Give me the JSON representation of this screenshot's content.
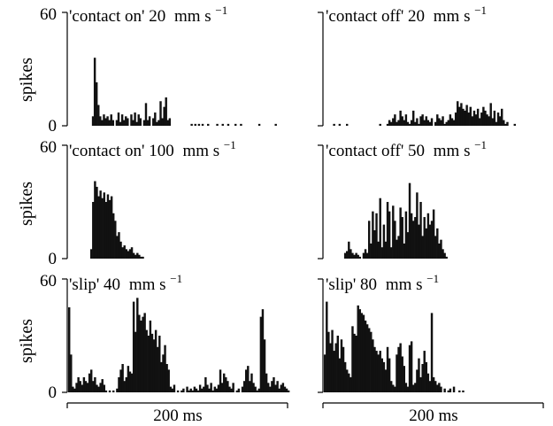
{
  "chart_data": [
    {
      "type": "bar",
      "title": "'contact on' 20",
      "unit": "mm s",
      "unit_exp": "−1",
      "ylabel": "spikes",
      "yticks": [
        "0",
        "60"
      ],
      "ylim": [
        0,
        60
      ],
      "values": [
        0,
        0,
        0,
        0,
        0,
        0,
        0,
        0,
        0,
        0,
        0,
        0,
        0,
        5,
        36,
        23,
        11,
        5,
        3,
        6,
        4,
        5,
        3,
        6,
        3,
        0,
        3,
        7,
        2,
        6,
        3,
        5,
        4,
        0,
        6,
        3,
        7,
        2,
        6,
        4,
        0,
        3,
        12,
        3,
        5,
        0,
        4,
        7,
        2,
        3,
        13,
        4,
        10,
        15,
        3,
        4,
        0,
        0,
        0,
        0,
        0,
        0,
        0,
        0,
        0,
        0,
        0,
        1,
        0,
        1,
        0,
        1,
        0,
        1,
        0,
        0,
        1,
        0,
        0,
        0,
        0,
        1,
        0,
        0,
        1,
        0,
        0,
        1,
        0,
        0,
        0,
        1,
        0,
        0,
        1,
        0,
        0,
        0,
        0,
        0,
        0,
        0,
        0,
        0,
        1,
        0,
        0,
        0,
        0,
        0,
        0,
        0,
        0,
        1,
        0,
        0,
        0,
        0,
        0,
        0,
        0
      ]
    },
    {
      "type": "bar",
      "title": "'contact off' 20",
      "unit": "mm s",
      "unit_exp": "−1",
      "ylabel": "",
      "yticks": [
        "",
        ""
      ],
      "ylim": [
        0,
        60
      ],
      "values": [
        0,
        0,
        0,
        0,
        0,
        1,
        0,
        0,
        1,
        0,
        0,
        0,
        1,
        0,
        0,
        0,
        0,
        0,
        0,
        0,
        0,
        0,
        0,
        0,
        0,
        0,
        0,
        0,
        0,
        0,
        1,
        0,
        0,
        0,
        1,
        3,
        2,
        4,
        6,
        2,
        3,
        8,
        5,
        3,
        6,
        2,
        1,
        3,
        8,
        2,
        4,
        1,
        5,
        6,
        3,
        5,
        3,
        2,
        4,
        0,
        2,
        6,
        4,
        3,
        5,
        1,
        2,
        3,
        6,
        4,
        3,
        7,
        13,
        10,
        12,
        9,
        8,
        11,
        7,
        10,
        5,
        8,
        6,
        9,
        4,
        7,
        10,
        8,
        6,
        5,
        12,
        4,
        8,
        2,
        7,
        5,
        9,
        3,
        1,
        2,
        0,
        0,
        0,
        1,
        0,
        0,
        0,
        0,
        0,
        0,
        0,
        0,
        0,
        0,
        0,
        0,
        0,
        0,
        0,
        0
      ]
    },
    {
      "type": "bar",
      "title": "'contact on' 100",
      "unit": "mm s",
      "unit_exp": "−1",
      "ylabel": "spikes",
      "yticks": [
        "0",
        "60"
      ],
      "ylim": [
        0,
        60
      ],
      "values": [
        0,
        0,
        0,
        0,
        0,
        0,
        0,
        0,
        0,
        0,
        0,
        0,
        5,
        30,
        41,
        38,
        33,
        36,
        32,
        35,
        30,
        34,
        31,
        33,
        24,
        20,
        12,
        14,
        9,
        6,
        7,
        5,
        4,
        5,
        6,
        3,
        2,
        3,
        2,
        1,
        1,
        0,
        0,
        0,
        0,
        0,
        0,
        0,
        0,
        0,
        0,
        0,
        0,
        0,
        0,
        0,
        0,
        0,
        0,
        0,
        0,
        0,
        0,
        0,
        0,
        0,
        0,
        0,
        0,
        0,
        0,
        0,
        0,
        0,
        0,
        0,
        0,
        0,
        0,
        0,
        0,
        0,
        0,
        0,
        0,
        0,
        0,
        0,
        0,
        0,
        0,
        0,
        0,
        0,
        0,
        0,
        0,
        0,
        0,
        0,
        0,
        0,
        0,
        0,
        0,
        0,
        0,
        0,
        0,
        0,
        0,
        0,
        0,
        0,
        0,
        0,
        0,
        0,
        0,
        0
      ]
    },
    {
      "type": "bar",
      "title": "'contact off' 50",
      "unit": "mm s",
      "unit_exp": "−1",
      "ylabel": "",
      "yticks": [
        "",
        ""
      ],
      "ylim": [
        0,
        60
      ],
      "values": [
        0,
        0,
        0,
        0,
        0,
        0,
        0,
        0,
        0,
        0,
        0,
        3,
        4,
        9,
        5,
        3,
        2,
        3,
        2,
        1,
        0,
        3,
        5,
        3,
        20,
        8,
        25,
        15,
        24,
        9,
        32,
        6,
        18,
        9,
        30,
        25,
        6,
        28,
        20,
        10,
        12,
        27,
        22,
        8,
        25,
        14,
        40,
        24,
        20,
        22,
        35,
        18,
        30,
        12,
        22,
        16,
        24,
        18,
        20,
        26,
        12,
        16,
        8,
        10,
        5,
        3,
        1,
        0,
        0,
        0,
        0,
        0,
        0,
        0,
        0,
        0,
        0,
        0,
        0,
        0,
        0,
        0,
        0,
        0,
        0,
        0,
        0,
        0,
        0,
        0,
        0,
        0,
        0,
        0,
        0,
        0,
        0,
        0,
        0,
        0,
        0,
        0,
        0,
        0,
        0,
        0,
        0,
        0,
        0,
        0,
        0,
        0,
        0,
        0,
        0,
        0,
        0,
        0,
        0,
        0
      ]
    },
    {
      "type": "bar",
      "title": "'slip' 40",
      "unit": "mm s",
      "unit_exp": "−1",
      "ylabel": "spikes",
      "yticks": [
        "0",
        "60"
      ],
      "ylim": [
        0,
        60
      ],
      "values": [
        45,
        20,
        3,
        2,
        5,
        8,
        6,
        4,
        8,
        6,
        5,
        10,
        12,
        6,
        8,
        4,
        3,
        5,
        7,
        4,
        1,
        0,
        1,
        0,
        1,
        0,
        2,
        8,
        12,
        15,
        6,
        8,
        14,
        11,
        10,
        48,
        32,
        50,
        41,
        38,
        40,
        42,
        33,
        30,
        38,
        31,
        28,
        33,
        24,
        30,
        16,
        20,
        25,
        15,
        12,
        3,
        2,
        4,
        0,
        1,
        0,
        1,
        2,
        0,
        3,
        1,
        2,
        1,
        3,
        2,
        1,
        4,
        2,
        3,
        8,
        4,
        2,
        5,
        1,
        3,
        2,
        4,
        12,
        5,
        10,
        8,
        6,
        3,
        2,
        5,
        0,
        1,
        2,
        0,
        3,
        6,
        12,
        14,
        6,
        10,
        5,
        3,
        1,
        2,
        40,
        44,
        28,
        10,
        5,
        3,
        6,
        8,
        4,
        6,
        2,
        4,
        5,
        3,
        2,
        1
      ]
    },
    {
      "type": "bar",
      "title": "'slip' 80",
      "unit": "mm s",
      "unit_exp": "−1",
      "ylabel": "",
      "yticks": [
        "",
        ""
      ],
      "ylim": [
        0,
        60
      ],
      "values": [
        20,
        48,
        32,
        26,
        33,
        22,
        26,
        30,
        18,
        28,
        24,
        16,
        12,
        10,
        8,
        35,
        31,
        30,
        46,
        44,
        42,
        41,
        38,
        36,
        34,
        32,
        28,
        24,
        22,
        20,
        22,
        18,
        16,
        12,
        24,
        18,
        6,
        4,
        3,
        20,
        24,
        26,
        19,
        14,
        5,
        3,
        25,
        27,
        4,
        5,
        12,
        18,
        8,
        15,
        22,
        16,
        10,
        6,
        42,
        8,
        6,
        4,
        5,
        3,
        0,
        2,
        0,
        1,
        2,
        0,
        3,
        0,
        0,
        1,
        0,
        1,
        0,
        0,
        0,
        0,
        0,
        0,
        0,
        0,
        0,
        0,
        0,
        0,
        0,
        0,
        0,
        0,
        0,
        0,
        0,
        0,
        0,
        0,
        0,
        0,
        0,
        0,
        0,
        0,
        0,
        0,
        0,
        0,
        0,
        0,
        0,
        0,
        0,
        0,
        0,
        0,
        0,
        0,
        0,
        0
      ]
    }
  ],
  "scale_bar": {
    "left_label": "200 ms",
    "right_label": "200 ms"
  }
}
